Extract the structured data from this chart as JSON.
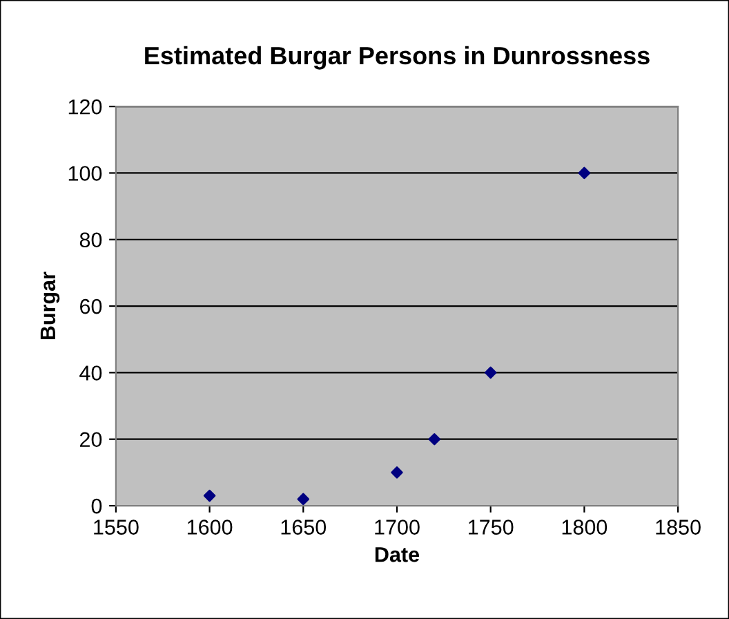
{
  "chart_data": {
    "type": "scatter",
    "title": "Estimated Burgar Persons in Dunrossness",
    "xlabel": "Date",
    "ylabel": "Burgar",
    "x": [
      1600,
      1650,
      1700,
      1720,
      1750,
      1800
    ],
    "series": [
      {
        "color": "#000080",
        "values": [
          3,
          2,
          10,
          20,
          40,
          100
        ]
      }
    ],
    "xlim": [
      1550,
      1850
    ],
    "xticks": [
      1550,
      1600,
      1650,
      1700,
      1750,
      1800,
      1850
    ],
    "ylim": [
      0,
      120
    ],
    "yticks": [
      0,
      20,
      40,
      60,
      80,
      100,
      120
    ],
    "grid": "y",
    "legend": false,
    "marker": "diamond"
  }
}
